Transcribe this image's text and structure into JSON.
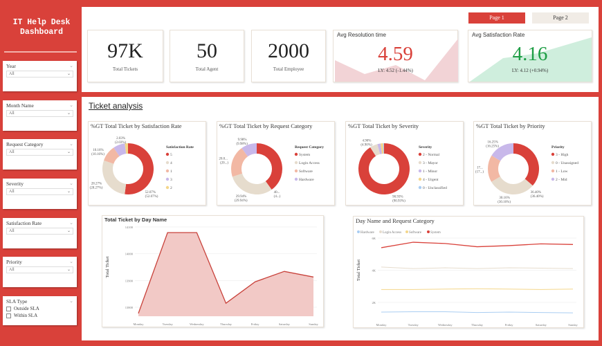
{
  "sidebar": {
    "title_line1": "IT Help Desk",
    "title_line2": "Dashboard",
    "slicers": [
      {
        "label": "Year",
        "value": "All"
      },
      {
        "label": "Month Name",
        "value": "All"
      },
      {
        "label": "Request Category",
        "value": "All"
      },
      {
        "label": "Severity",
        "value": "All"
      },
      {
        "label": "Satisfaction Rate",
        "value": "All"
      },
      {
        "label": "Priority",
        "value": "All"
      }
    ],
    "sla": {
      "label": "SLA Type",
      "options": [
        "Outside SLA",
        "Within SLA"
      ]
    }
  },
  "pages": {
    "page1": "Page 1",
    "page2": "Page 2"
  },
  "kpis": [
    {
      "value": "97K",
      "label": "Total Tickets"
    },
    {
      "value": "50",
      "label": "Total Agent"
    },
    {
      "value": "2000",
      "label": "Total Employee"
    }
  ],
  "resolution": {
    "title": "Avg Resolution time",
    "value": "4.59",
    "ly": "LY: 4.52 (-1.44%)",
    "color": "#d9413a"
  },
  "satisfaction": {
    "title": "Avg Satisfaction Rate",
    "value": "4.16",
    "ly": "LY: 4.12 (+0.94%)",
    "color": "#1e9e45"
  },
  "section_title": "Ticket analysis",
  "colors": {
    "red": "#d9413a",
    "beige": "#e6dccd",
    "salmon": "#f2b8a4",
    "purple": "#c8b8ea",
    "yellow": "#f4d68a",
    "blue": "#a9cdf2"
  },
  "chart_data": [
    {
      "type": "pie",
      "title": "%GT Total Ticket by Satisfaction Rate",
      "legend_title": "Satisfaction Rate",
      "slices": [
        {
          "name": "5",
          "value": 52.07,
          "label": "52.07% (52.07%)",
          "color": "#d9413a"
        },
        {
          "name": "4",
          "value": 28.27,
          "label": "28.27% (28.27%)",
          "color": "#e6dccd"
        },
        {
          "name": "1",
          "value": 10.16,
          "label": "10.16% (10.16%)",
          "color": "#f2b8a4"
        },
        {
          "name": "3",
          "value": 7.47,
          "label": "",
          "color": "#c8b8ea"
        },
        {
          "name": "2",
          "value": 2.03,
          "label": "2.03% (2.03%)",
          "color": "#f4d68a"
        }
      ]
    },
    {
      "type": "pie",
      "title": "%GT Total Ticket by Request Category",
      "legend_title": "Request Category",
      "slices": [
        {
          "name": "System",
          "value": 40.08,
          "label": "40... (4...)",
          "color": "#d9413a"
        },
        {
          "name": "Login Access",
          "value": 29.94,
          "label": "29.94% (29.94%)",
          "color": "#e6dccd"
        },
        {
          "name": "Software",
          "value": 20.0,
          "label": "20.0... (20...)",
          "color": "#f2b8a4"
        },
        {
          "name": "Hardware",
          "value": 9.98,
          "label": "9.98% (9.98%)",
          "color": "#c8b8ea"
        }
      ]
    },
    {
      "type": "pie",
      "title": "%GT Total Ticket by Severity",
      "legend_title": "Severity",
      "slices": [
        {
          "name": "2 - Normal",
          "value": 90.93,
          "label": "90.93% (90.93%)",
          "color": "#d9413a"
        },
        {
          "name": "3 - Mayor",
          "value": 4.9,
          "label": "4.90% (4.90%)",
          "color": "#e6dccd"
        },
        {
          "name": "1 - Minor",
          "value": 2.0,
          "label": "",
          "color": "#c8b8ea"
        },
        {
          "name": "4 - Urgent",
          "value": 1.6,
          "label": "",
          "color": "#f4d68a"
        },
        {
          "name": "0 - Unclassified",
          "value": 0.57,
          "label": "",
          "color": "#a9cdf2"
        }
      ]
    },
    {
      "type": "pie",
      "title": "%GT Total Ticket by Priority",
      "legend_title": "Priority",
      "slices": [
        {
          "name": "3 - High",
          "value": 36.4,
          "label": "36.40% (36.40%)",
          "color": "#d9413a"
        },
        {
          "name": "0 - Unassigned",
          "value": 30.16,
          "label": "30.16% (30.16%)",
          "color": "#e6dccd"
        },
        {
          "name": "1 - Low",
          "value": 17.19,
          "label": "17... (17...)",
          "color": "#f2b8a4"
        },
        {
          "name": "2 - Mid",
          "value": 16.25,
          "label": "16.25% (16.25%)",
          "color": "#c8b8ea"
        }
      ]
    },
    {
      "type": "area",
      "title": "Total Ticket by Day Name",
      "ylabel": "Total Ticket",
      "categories": [
        "Monday",
        "Tuesday",
        "Wednesday",
        "Thursday",
        "Friday",
        "Saturday",
        "Sunday"
      ],
      "values": [
        13777,
        14079,
        14079,
        13815,
        13895,
        13934,
        13913
      ],
      "yticks": [
        "13800",
        "13900",
        "14000",
        "14100"
      ],
      "ylim": [
        13800,
        14100
      ]
    },
    {
      "type": "line",
      "title": "Day Name and Request Category",
      "ylabel": "Total Ticket",
      "categories": [
        "Monday",
        "Tuesday",
        "Wednesday",
        "Thursday",
        "Friday",
        "Saturday",
        "Sunday"
      ],
      "yticks": [
        "2K",
        "4K",
        "6K"
      ],
      "ylim": [
        2000,
        6000
      ],
      "series": [
        {
          "name": "Hardware",
          "color": "#a9cdf2",
          "values": [
            1400,
            1420,
            1420,
            1370,
            1400,
            1370,
            1350
          ]
        },
        {
          "name": "Login Access",
          "color": "#e6dccd",
          "values": [
            4200,
            4100,
            4150,
            4100,
            4150,
            4130,
            4100
          ]
        },
        {
          "name": "Software",
          "color": "#f4d68a",
          "values": [
            2800,
            2800,
            2830,
            2850,
            2830,
            2800,
            2830
          ]
        },
        {
          "name": "System",
          "color": "#d9413a",
          "values": [
            5400,
            5740,
            5660,
            5460,
            5530,
            5640,
            5600
          ]
        }
      ]
    }
  ]
}
